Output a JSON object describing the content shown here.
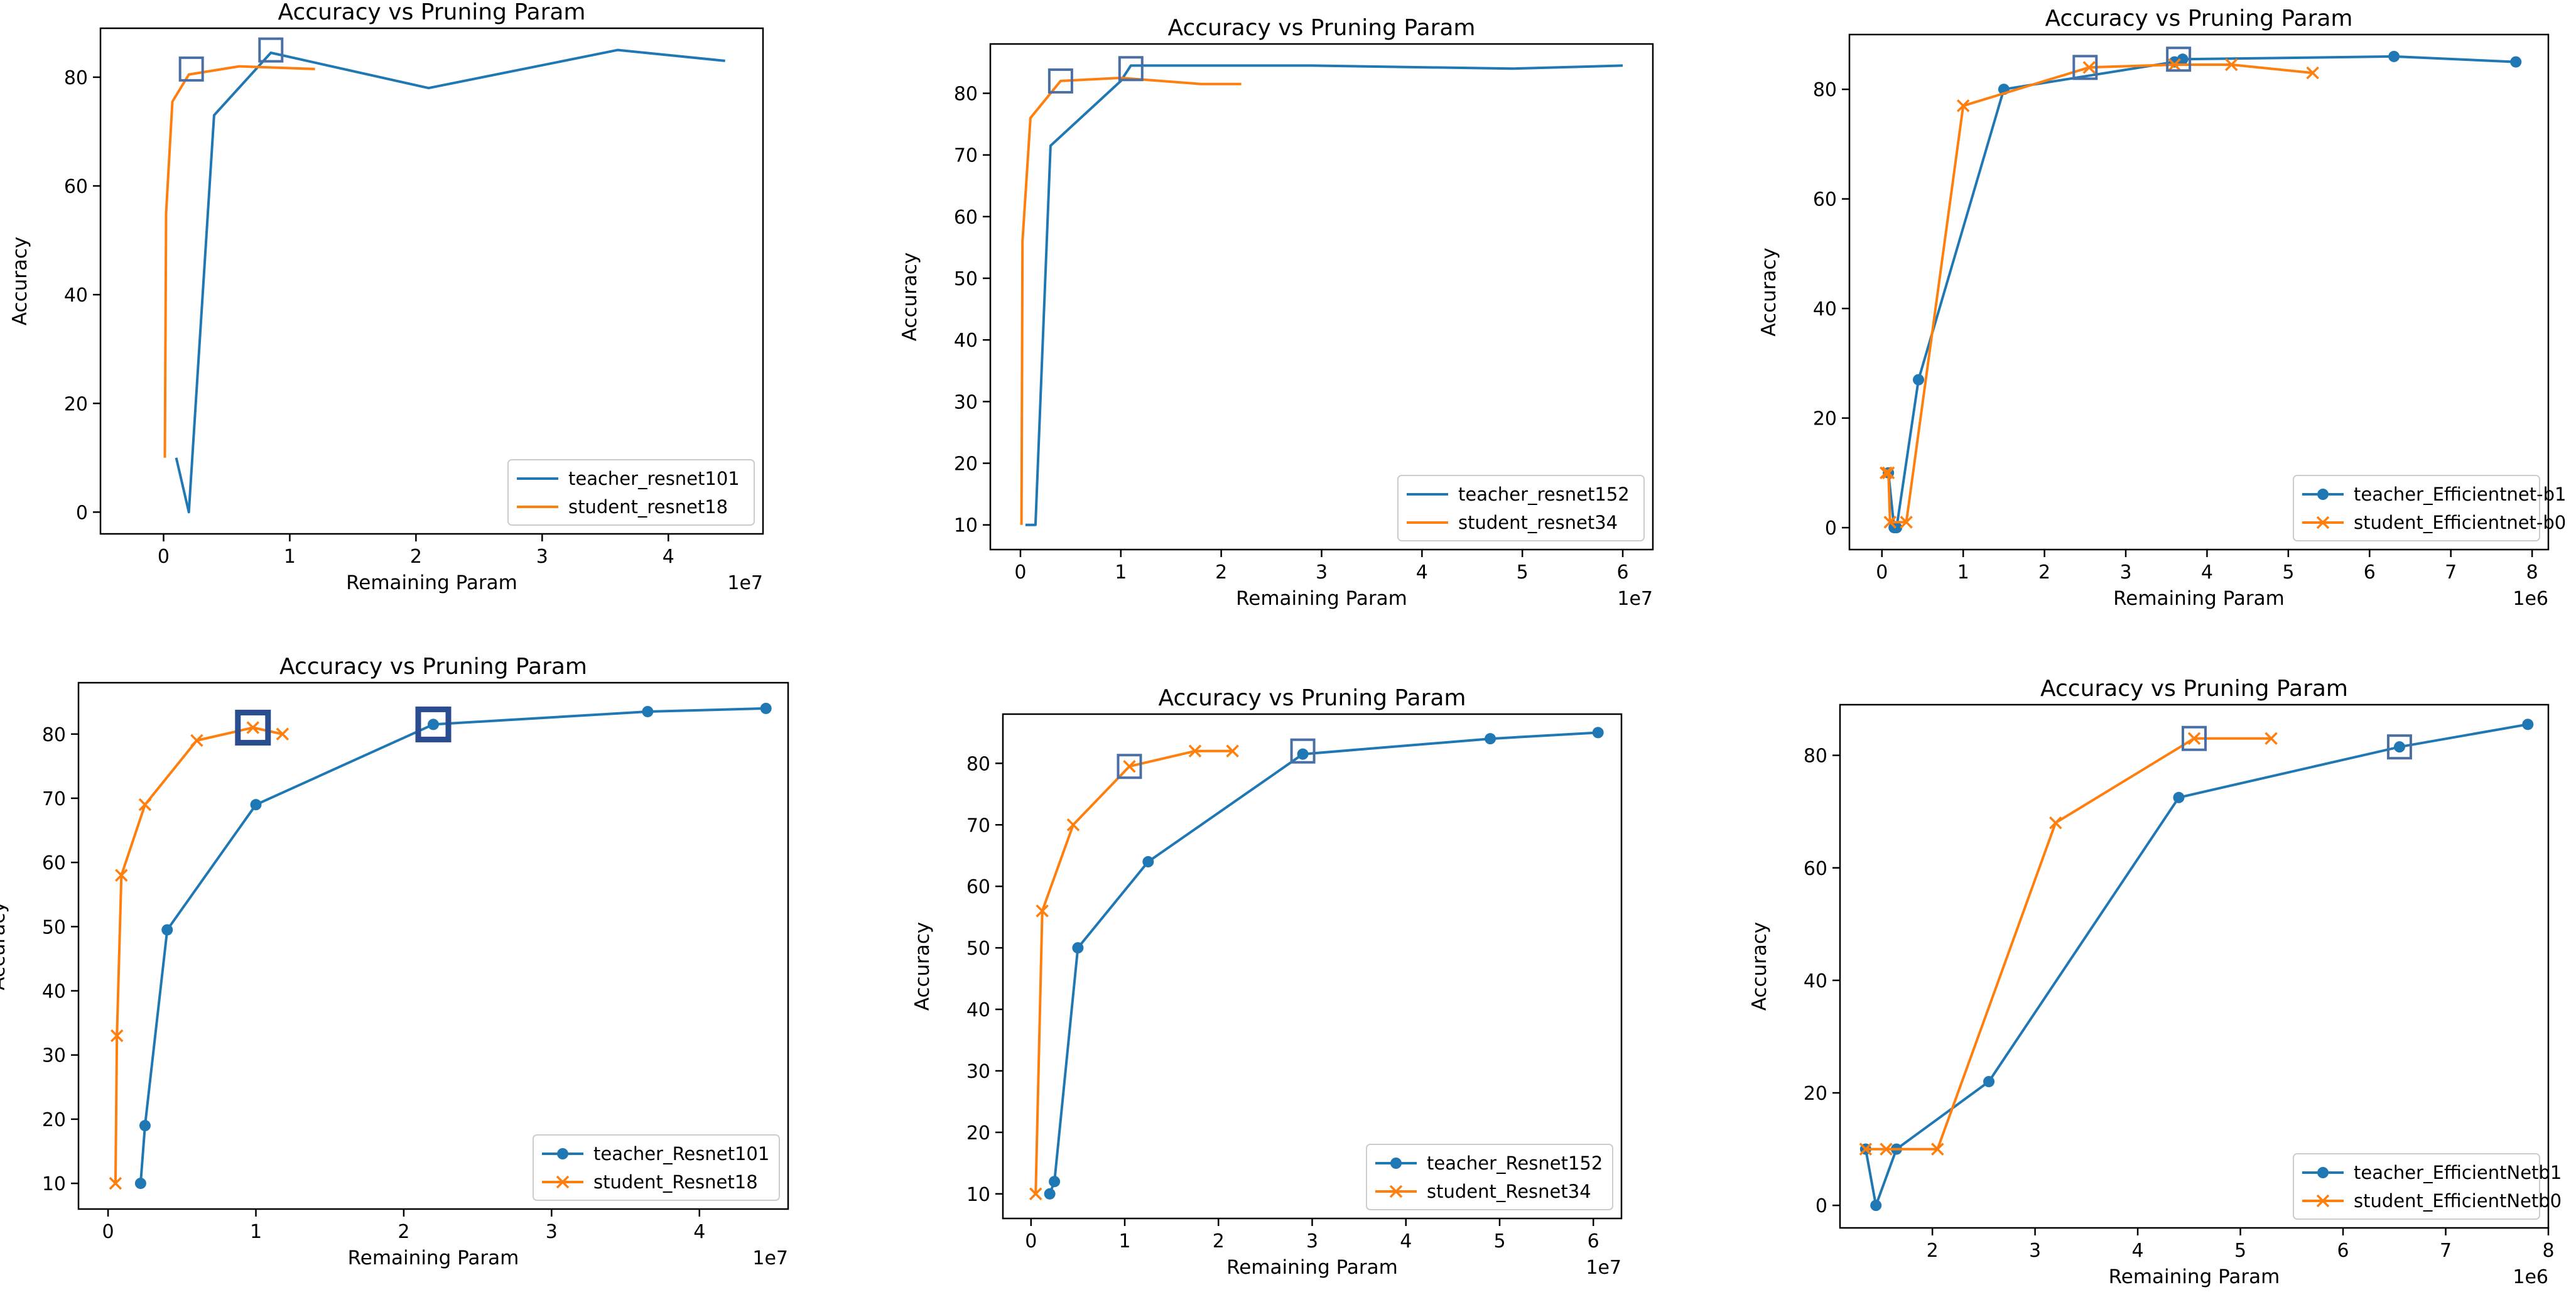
{
  "colors": {
    "teacher": "#1f77b4",
    "student": "#ff7f0e",
    "highlight": "#4a6fa5",
    "highlight_bold": "#2a4d8f"
  },
  "chart_data": [
    {
      "type": "line",
      "title": "Accuracy vs Pruning Param",
      "xlabel": "Remaining Param",
      "ylabel": "Accuracy",
      "x_multiplier": "1e7",
      "xlim": [
        -0.5,
        4.75
      ],
      "ylim": [
        -4,
        89
      ],
      "xticks": [
        0,
        1,
        2,
        3,
        4
      ],
      "yticks": [
        0,
        20,
        40,
        60,
        80
      ],
      "legend": "lower-right",
      "series": [
        {
          "name": "teacher_resnet101",
          "color": "teacher",
          "marker": "none",
          "x": [
            0.1,
            0.2,
            0.4,
            0.85,
            2.1,
            3.6,
            4.45
          ],
          "y": [
            10,
            0,
            73,
            84.5,
            78,
            85,
            83
          ]
        },
        {
          "name": "student_resnet18",
          "color": "student",
          "marker": "none",
          "x": [
            0.01,
            0.02,
            0.07,
            0.2,
            0.6,
            1.2
          ],
          "y": [
            10,
            55,
            75.5,
            80.5,
            82,
            81.5
          ]
        }
      ],
      "highlights": [
        {
          "x": 0.22,
          "y": 81.5,
          "style": "thin"
        },
        {
          "x": 0.85,
          "y": 85,
          "style": "thin"
        }
      ]
    },
    {
      "type": "line",
      "title": "Accuracy vs Pruning Param",
      "xlabel": "Remaining Param",
      "ylabel": "Accuracy",
      "x_multiplier": "1e7",
      "xlim": [
        -0.3,
        6.3
      ],
      "ylim": [
        6,
        88
      ],
      "xticks": [
        0,
        1,
        2,
        3,
        4,
        5,
        6
      ],
      "yticks": [
        10,
        20,
        30,
        40,
        50,
        60,
        70,
        80
      ],
      "legend": "lower-right",
      "series": [
        {
          "name": "teacher_resnet152",
          "color": "teacher",
          "marker": "none",
          "x": [
            0.05,
            0.15,
            0.3,
            1.0,
            1.1,
            2.9,
            4.9,
            6.0
          ],
          "y": [
            10,
            10,
            71.5,
            82,
            84.5,
            84.5,
            84,
            84.5
          ]
        },
        {
          "name": "student_resnet34",
          "color": "student",
          "marker": "none",
          "x": [
            0.01,
            0.02,
            0.1,
            0.4,
            1.0,
            1.8,
            2.2
          ],
          "y": [
            10,
            56,
            76,
            82,
            82.5,
            81.5,
            81.5
          ]
        }
      ],
      "highlights": [
        {
          "x": 0.4,
          "y": 82,
          "style": "thin"
        },
        {
          "x": 1.1,
          "y": 84,
          "style": "thin"
        }
      ]
    },
    {
      "type": "line",
      "title": "Accuracy vs Pruning Param",
      "xlabel": "Remaining Param",
      "ylabel": "Accuracy",
      "x_multiplier": "1e6",
      "xlim": [
        -0.4,
        8.2
      ],
      "ylim": [
        -4,
        90
      ],
      "xticks": [
        0,
        1,
        2,
        3,
        4,
        5,
        6,
        7,
        8
      ],
      "yticks": [
        0,
        20,
        40,
        60,
        80
      ],
      "legend": "lower-right",
      "series": [
        {
          "name": "teacher_Efficientnet-b1",
          "color": "teacher",
          "marker": "circle",
          "x": [
            0.08,
            0.15,
            0.18,
            0.45,
            1.5,
            3.6,
            3.7,
            6.3,
            7.8
          ],
          "y": [
            10,
            0,
            0,
            27,
            80,
            85,
            85.5,
            86,
            85
          ]
        },
        {
          "name": "student_Efficientnet-b0",
          "color": "student",
          "marker": "x",
          "x": [
            0.05,
            0.08,
            0.1,
            0.3,
            1.0,
            2.55,
            3.6,
            4.3,
            5.3
          ],
          "y": [
            10,
            10,
            1,
            1,
            77,
            84,
            84.5,
            84.5,
            83
          ]
        }
      ],
      "highlights": [
        {
          "x": 2.5,
          "y": 84,
          "style": "thin"
        },
        {
          "x": 3.65,
          "y": 85.5,
          "style": "thin"
        }
      ]
    },
    {
      "type": "line",
      "title": "Accuracy vs Pruning Param",
      "xlabel": "Remaining Param",
      "ylabel": "Accuracy",
      "x_multiplier": "1e7",
      "xlim": [
        -0.2,
        4.6
      ],
      "ylim": [
        6,
        88
      ],
      "xticks": [
        0,
        1,
        2,
        3,
        4
      ],
      "yticks": [
        10,
        20,
        30,
        40,
        50,
        60,
        70,
        80
      ],
      "legend": "lower-right",
      "series": [
        {
          "name": "teacher_Resnet101",
          "color": "teacher",
          "marker": "circle",
          "x": [
            0.22,
            0.25,
            0.4,
            1.0,
            2.2,
            3.65,
            4.45
          ],
          "y": [
            10,
            19,
            49.5,
            69,
            81.5,
            83.5,
            84
          ]
        },
        {
          "name": "student_Resnet18",
          "color": "student",
          "marker": "x",
          "x": [
            0.05,
            0.06,
            0.09,
            0.25,
            0.6,
            0.98,
            1.18
          ],
          "y": [
            10,
            33,
            58,
            69,
            79,
            81,
            80
          ]
        }
      ],
      "highlights": [
        {
          "x": 0.98,
          "y": 81,
          "style": "bold"
        },
        {
          "x": 2.2,
          "y": 81.5,
          "style": "bold"
        }
      ]
    },
    {
      "type": "line",
      "title": "Accuracy vs Pruning Param",
      "xlabel": "Remaining Param",
      "ylabel": "Accuracy",
      "x_multiplier": "1e7",
      "xlim": [
        -0.3,
        6.3
      ],
      "ylim": [
        6,
        88
      ],
      "xticks": [
        0,
        1,
        2,
        3,
        4,
        5,
        6
      ],
      "yticks": [
        10,
        20,
        30,
        40,
        50,
        60,
        70,
        80
      ],
      "legend": "lower-right",
      "series": [
        {
          "name": "teacher_Resnet152",
          "color": "teacher",
          "marker": "circle",
          "x": [
            0.2,
            0.25,
            0.5,
            1.25,
            2.9,
            4.9,
            6.05
          ],
          "y": [
            10,
            12,
            50,
            64,
            81.5,
            84,
            85
          ]
        },
        {
          "name": "student_Resnet34",
          "color": "student",
          "marker": "x",
          "x": [
            0.05,
            0.12,
            0.45,
            1.05,
            1.75,
            2.15
          ],
          "y": [
            10,
            56,
            70,
            79.5,
            82,
            82
          ]
        }
      ],
      "highlights": [
        {
          "x": 1.05,
          "y": 79.5,
          "style": "thin"
        },
        {
          "x": 2.9,
          "y": 82,
          "style": "thin"
        }
      ]
    },
    {
      "type": "line",
      "title": "Accuracy vs Pruning Param",
      "xlabel": "Remaining Param",
      "ylabel": "Accuracy",
      "x_multiplier": "1e6",
      "xlim": [
        1.1,
        8.0
      ],
      "ylim": [
        -4,
        89
      ],
      "xticks": [
        2,
        3,
        4,
        5,
        6,
        7,
        8
      ],
      "yticks": [
        0,
        20,
        40,
        60,
        80
      ],
      "legend": "lower-right",
      "series": [
        {
          "name": "teacher_EfficientNetb1",
          "color": "teacher",
          "marker": "circle",
          "x": [
            1.35,
            1.45,
            1.65,
            2.55,
            4.4,
            6.55,
            7.8
          ],
          "y": [
            10,
            0,
            10,
            22,
            72.5,
            81.5,
            85.5
          ]
        },
        {
          "name": "student_EfficientNetb0",
          "color": "student",
          "marker": "x",
          "x": [
            1.35,
            1.55,
            2.05,
            3.2,
            4.55,
            5.3
          ],
          "y": [
            10,
            10,
            10,
            68,
            83,
            83
          ]
        }
      ],
      "highlights": [
        {
          "x": 4.55,
          "y": 83,
          "style": "thin"
        },
        {
          "x": 6.55,
          "y": 81.5,
          "style": "thin"
        }
      ]
    }
  ]
}
